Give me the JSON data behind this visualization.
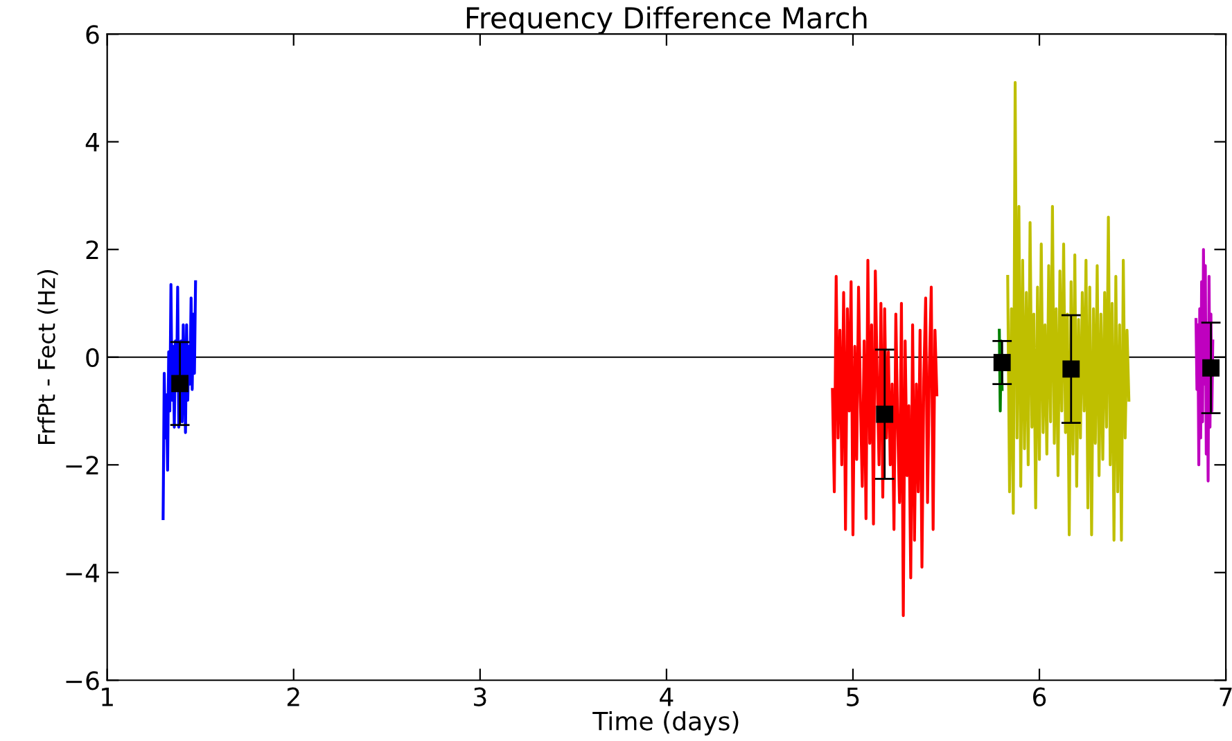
{
  "chart_data": {
    "type": "line",
    "title": "Frequency Difference March",
    "xlabel": "Time (days)",
    "ylabel": "FrfPt - Fect (Hz)",
    "xlim": [
      1,
      7
    ],
    "ylim": [
      -6,
      6
    ],
    "xticks": [
      1,
      2,
      3,
      4,
      5,
      6,
      7
    ],
    "yticks": [
      {
        "value": -6,
        "label": "−6"
      },
      {
        "value": -4,
        "label": "−4"
      },
      {
        "value": -2,
        "label": "−2"
      },
      0,
      2,
      4,
      6
    ],
    "grid": false,
    "line_style": "solid",
    "ref_lines": [
      {
        "axis": "y",
        "value": 0,
        "color": "#000000"
      }
    ],
    "series": [
      {
        "color": "#0000ff",
        "x": [
          1.3,
          1.306,
          1.312,
          1.318,
          1.324,
          1.33,
          1.336,
          1.342,
          1.348,
          1.354,
          1.36,
          1.366,
          1.372,
          1.378,
          1.384,
          1.39,
          1.396,
          1.402,
          1.408,
          1.414,
          1.42,
          1.426,
          1.432,
          1.438,
          1.444,
          1.45,
          1.456,
          1.462,
          1.468,
          1.474
        ],
        "values": [
          -3.0,
          -0.3,
          -1.5,
          -0.7,
          -2.1,
          0.1,
          -1.0,
          1.35,
          -0.8,
          0.2,
          -1.3,
          0.3,
          -0.6,
          1.3,
          -1.3,
          -0.2,
          0.3,
          -1.2,
          0.6,
          -0.4,
          -1.4,
          0.6,
          -0.8,
          0.2,
          -0.5,
          1.1,
          -0.6,
          0.8,
          -0.3,
          1.4
        ]
      },
      {
        "color": "#ff0000",
        "x": [
          4.89,
          4.9,
          4.91,
          4.92,
          4.93,
          4.94,
          4.95,
          4.96,
          4.97,
          4.98,
          4.99,
          5.0,
          5.01,
          5.02,
          5.03,
          5.04,
          5.05,
          5.06,
          5.07,
          5.08,
          5.09,
          5.1,
          5.11,
          5.12,
          5.13,
          5.14,
          5.15,
          5.16,
          5.17,
          5.18,
          5.19,
          5.2,
          5.21,
          5.22,
          5.23,
          5.24,
          5.25,
          5.26,
          5.27,
          5.28,
          5.29,
          5.3,
          5.31,
          5.32,
          5.33,
          5.34,
          5.35,
          5.36,
          5.37,
          5.38,
          5.39,
          5.4,
          5.41,
          5.42,
          5.43,
          5.44,
          5.45
        ],
        "values": [
          -0.6,
          -2.5,
          1.5,
          -1.5,
          0.5,
          -2.0,
          1.2,
          -3.2,
          0.9,
          -1.0,
          1.4,
          -3.3,
          0.2,
          -1.9,
          1.3,
          -0.8,
          -2.4,
          0.3,
          -3.0,
          1.8,
          -1.6,
          0.6,
          -3.1,
          1.6,
          -0.4,
          -2.0,
          1.0,
          -2.6,
          0.9,
          -1.5,
          0.1,
          -2.0,
          -0.5,
          -3.2,
          0.8,
          -1.3,
          -2.7,
          1.0,
          -4.8,
          0.3,
          -2.2,
          -0.9,
          -4.1,
          0.6,
          -3.4,
          -0.5,
          -2.5,
          0.5,
          -3.9,
          -0.4,
          1.1,
          -2.7,
          -0.2,
          1.3,
          -3.2,
          0.5,
          -0.7
        ]
      },
      {
        "color": "#008000",
        "x": [
          5.785,
          5.79,
          5.795,
          5.8
        ],
        "values": [
          0.5,
          -1.0,
          0.3,
          -0.6
        ]
      },
      {
        "color": "#bfbf00",
        "x": [
          5.83,
          5.84,
          5.85,
          5.86,
          5.87,
          5.88,
          5.89,
          5.9,
          5.91,
          5.92,
          5.93,
          5.94,
          5.95,
          5.96,
          5.97,
          5.98,
          5.99,
          6.0,
          6.01,
          6.02,
          6.03,
          6.04,
          6.05,
          6.06,
          6.07,
          6.08,
          6.09,
          6.1,
          6.11,
          6.12,
          6.13,
          6.14,
          6.15,
          6.16,
          6.17,
          6.18,
          6.19,
          6.2,
          6.21,
          6.22,
          6.23,
          6.24,
          6.25,
          6.26,
          6.27,
          6.28,
          6.29,
          6.3,
          6.31,
          6.32,
          6.33,
          6.34,
          6.35,
          6.36,
          6.37,
          6.38,
          6.39,
          6.4,
          6.41,
          6.42,
          6.43,
          6.44,
          6.45,
          6.46,
          6.47,
          6.48
        ],
        "values": [
          1.5,
          -2.5,
          0.9,
          -2.9,
          5.1,
          -1.5,
          2.8,
          -2.4,
          1.8,
          -1.7,
          1.2,
          -2.0,
          2.5,
          -1.3,
          0.8,
          -2.8,
          1.3,
          -1.9,
          2.1,
          -1.4,
          0.6,
          -1.8,
          1.7,
          -1.2,
          2.8,
          -1.6,
          0.9,
          -2.2,
          1.6,
          -1.0,
          2.1,
          -1.4,
          0.8,
          -3.3,
          1.4,
          -1.8,
          1.9,
          -2.4,
          0.7,
          -1.5,
          1.2,
          -1.0,
          1.8,
          -2.8,
          1.3,
          -3.3,
          0.9,
          -1.6,
          1.7,
          -2.2,
          0.8,
          -1.9,
          1.2,
          -1.3,
          2.6,
          -2.0,
          1.0,
          -3.4,
          1.5,
          -2.5,
          0.6,
          -3.4,
          1.8,
          -1.5,
          0.5,
          -0.8
        ]
      },
      {
        "color": "#bf00bf",
        "x": [
          6.84,
          6.845,
          6.85,
          6.855,
          6.86,
          6.865,
          6.87,
          6.875,
          6.88,
          6.885,
          6.89,
          6.895,
          6.9,
          6.905,
          6.91,
          6.915,
          6.92,
          6.925,
          6.93
        ],
        "values": [
          0.7,
          -0.6,
          0.6,
          -2.0,
          0.9,
          -1.5,
          1.4,
          -1.2,
          2.0,
          -0.5,
          1.7,
          -1.8,
          0.6,
          -2.3,
          1.5,
          -1.3,
          0.8,
          -1.0,
          0.3
        ]
      },
      {
        "type": "scatter",
        "marker": "square",
        "color": "#000000",
        "x": [
          1.39,
          5.17,
          5.8,
          6.17,
          6.92
        ],
        "values": [
          -0.49,
          -1.06,
          -0.1,
          -0.22,
          -0.2
        ],
        "errors": [
          0.77,
          1.2,
          0.4,
          1.0,
          0.84
        ]
      }
    ]
  }
}
